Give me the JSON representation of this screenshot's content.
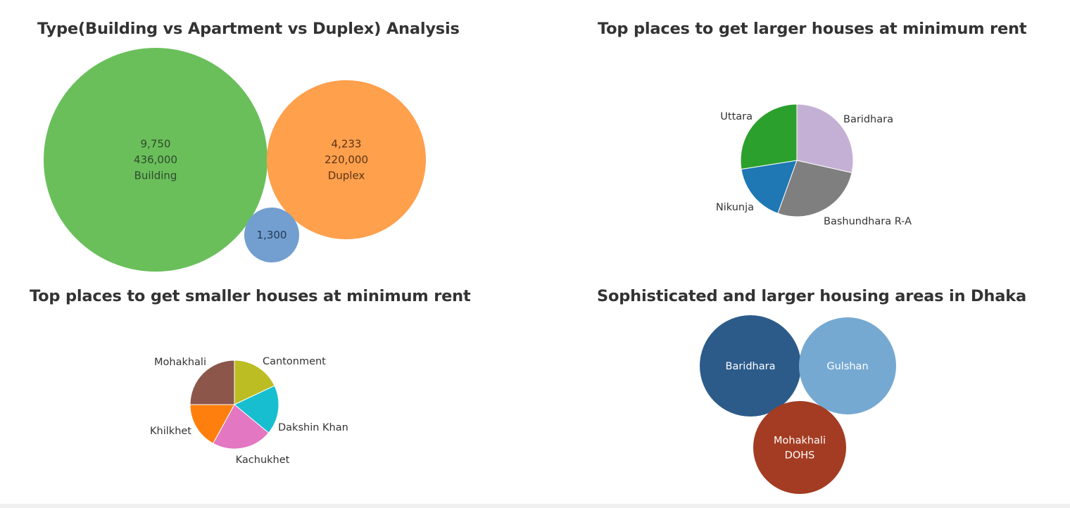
{
  "chart_data": [
    {
      "id": "type-analysis",
      "type": "bubble",
      "title": "Type(Building vs Apartment vs Duplex) Analysis",
      "bubbles": [
        {
          "label": "Building",
          "count": "9,750",
          "value": "436,000",
          "color": "#6abf5b"
        },
        {
          "label": "Duplex",
          "count": "4,233",
          "value": "220,000",
          "color": "#ffa04d"
        },
        {
          "label": "",
          "count": "1,300",
          "value": "",
          "color": "#729fcf"
        }
      ]
    },
    {
      "id": "larger-houses",
      "type": "pie",
      "title": "Top places to get larger houses at minimum rent",
      "slices": [
        {
          "label": "Baridhara",
          "share": 0.285,
          "color": "#c5b0d5"
        },
        {
          "label": "Bashundhara R-A",
          "share": 0.27,
          "color": "#7f7f7f"
        },
        {
          "label": "Nikunja",
          "share": 0.17,
          "color": "#1f77b4"
        },
        {
          "label": "Uttara",
          "share": 0.275,
          "color": "#2ca02c"
        }
      ]
    },
    {
      "id": "smaller-houses",
      "type": "pie",
      "title": "Top places to get smaller houses at minimum rent",
      "slices": [
        {
          "label": "Cantonment",
          "share": 0.18,
          "color": "#bcbd22"
        },
        {
          "label": "Dakshin Khan",
          "share": 0.18,
          "color": "#17becf"
        },
        {
          "label": "Kachukhet",
          "share": 0.22,
          "color": "#e377c2"
        },
        {
          "label": "Khilkhet",
          "share": 0.17,
          "color": "#ff7f0e"
        },
        {
          "label": "Mohakhali",
          "share": 0.25,
          "color": "#8c564b"
        }
      ]
    },
    {
      "id": "sophisticated-areas",
      "type": "bubble",
      "title": "Sophisticated and larger housing areas in Dhaka",
      "bubbles": [
        {
          "label": "Baridhara",
          "color": "#2c5b8a"
        },
        {
          "label": "Gulshan",
          "color": "#76a9d1"
        },
        {
          "label": "Mohakhali DOHS",
          "color": "#a33c22"
        }
      ]
    }
  ]
}
